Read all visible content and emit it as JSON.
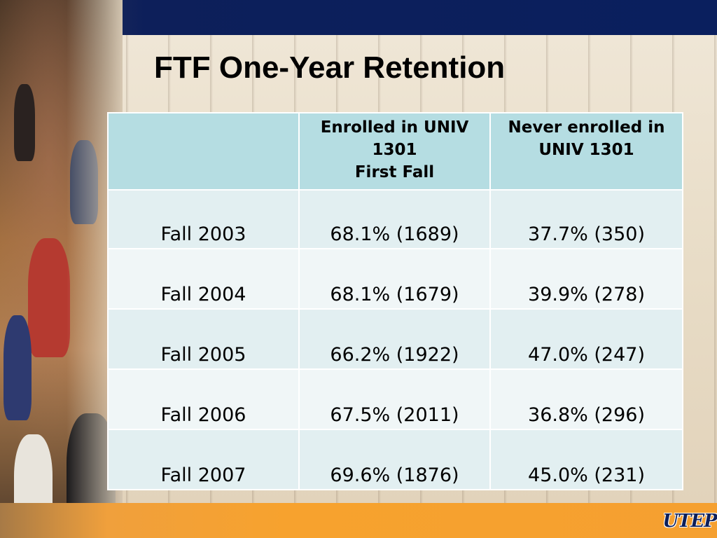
{
  "title": "FTF One-Year Retention",
  "logo_text": "UTEP",
  "table": {
    "headers": [
      {
        "lines": [
          ""
        ]
      },
      {
        "lines": [
          "Enrolled in UNIV",
          "1301",
          "First Fall"
        ]
      },
      {
        "lines": [
          "Never enrolled in",
          "UNIV 1301"
        ]
      }
    ],
    "rows": [
      {
        "label": "Fall 2003",
        "enrolled": "68.1% (1689)",
        "never": "37.7% (350)"
      },
      {
        "label": "Fall 2004",
        "enrolled": "68.1% (1679)",
        "never": "39.9% (278)"
      },
      {
        "label": "Fall 2005",
        "enrolled": "66.2% (1922)",
        "never": "47.0% (247)"
      },
      {
        "label": "Fall 2006",
        "enrolled": "67.5% (2011)",
        "never": "36.8% (296)"
      },
      {
        "label": "Fall 2007",
        "enrolled": "69.6% (1876)",
        "never": "45.0% (231)"
      }
    ]
  },
  "colors": {
    "top_bar": "#0a1f5e",
    "bottom_bar": "#f7a22e",
    "header_cell": "#b5dde2",
    "row_light": "#f0f6f7",
    "row_tint": "#e2eff1"
  }
}
